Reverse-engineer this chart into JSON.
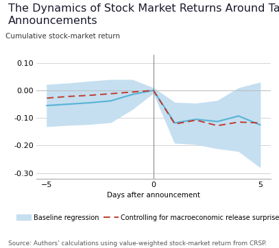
{
  "title": "The Dynamics of Stock Market Returns Around Tariff\nAnnouncements",
  "ylabel": "Cumulative stock-market return",
  "xlabel": "Days after announcement",
  "source": "Source: Authors’ calculations using value-weighted stock-market return from CRSP.",
  "xlim": [
    -5.5,
    5.5
  ],
  "ylim": [
    -0.32,
    0.13
  ],
  "yticks": [
    0.1,
    0.0,
    -0.1,
    -0.2,
    -0.3
  ],
  "xticks": [
    -5,
    0,
    5
  ],
  "days": [
    -5,
    -4,
    -3,
    -2,
    -1,
    0,
    1,
    2,
    3,
    4,
    5
  ],
  "baseline_mean": [
    -0.055,
    -0.05,
    -0.045,
    -0.038,
    -0.015,
    0.0,
    -0.118,
    -0.105,
    -0.113,
    -0.093,
    -0.125
  ],
  "baseline_upper": [
    0.02,
    0.025,
    0.032,
    0.038,
    0.038,
    0.008,
    -0.045,
    -0.048,
    -0.038,
    0.008,
    0.028
  ],
  "baseline_lower": [
    -0.13,
    -0.125,
    -0.122,
    -0.115,
    -0.068,
    -0.008,
    -0.19,
    -0.195,
    -0.21,
    -0.22,
    -0.278
  ],
  "control_mean": [
    -0.028,
    -0.022,
    -0.018,
    -0.012,
    -0.006,
    0.0,
    -0.122,
    -0.108,
    -0.128,
    -0.115,
    -0.118
  ],
  "baseline_color": "#5bb4d6",
  "baseline_fill_color": "#c5dff0",
  "control_color": "#c0392b",
  "vline_color": "#888888",
  "hline_color": "#bbbbbb",
  "grid_color": "#cccccc",
  "background_color": "#ffffff",
  "title_fontsize": 11.5,
  "label_fontsize": 7.5,
  "tick_fontsize": 8,
  "source_fontsize": 6.5,
  "legend_fontsize": 7.0
}
